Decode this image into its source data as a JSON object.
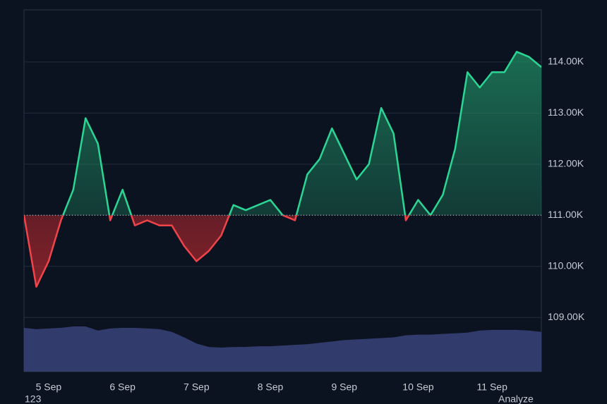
{
  "chart_data": {
    "type": "baseline",
    "baseline": 111,
    "categories": [
      null,
      null,
      "5 Sep",
      null,
      null,
      null,
      null,
      null,
      "6 Sep",
      null,
      null,
      null,
      null,
      null,
      "7 Sep",
      null,
      null,
      null,
      null,
      null,
      "8 Sep",
      null,
      null,
      null,
      null,
      null,
      "9 Sep",
      null,
      null,
      null,
      null,
      null,
      "10 Sep",
      null,
      null,
      null,
      null,
      null,
      "11 Sep",
      null,
      null,
      null,
      null
    ],
    "series": [
      {
        "up_color": "#2bd695",
        "down_color": "#f0444a",
        "values": [
          111.0,
          109.6,
          110.1,
          110.9,
          111.5,
          112.9,
          112.4,
          110.9,
          111.5,
          110.8,
          110.9,
          110.8,
          110.8,
          110.4,
          110.1,
          110.3,
          110.6,
          111.2,
          111.1,
          111.2,
          111.3,
          111.0,
          110.9,
          111.8,
          112.1,
          112.7,
          112.2,
          111.7,
          112.0,
          113.1,
          112.6,
          110.9,
          111.3,
          111.0,
          111.4,
          112.3,
          113.8,
          113.5,
          113.8,
          113.8,
          114.2,
          114.1,
          113.9
        ]
      }
    ],
    "volume": {
      "color": "#39447a",
      "values": [
        64,
        62,
        63,
        64,
        66,
        66,
        60,
        63,
        64,
        64,
        63,
        62,
        58,
        50,
        41,
        36,
        35,
        36,
        36,
        37,
        37,
        38,
        39,
        40,
        42,
        44,
        46,
        47,
        48,
        49,
        50,
        53,
        54,
        54,
        55,
        56,
        57,
        60,
        61,
        61,
        61,
        60,
        58
      ]
    },
    "ylim": [
      107.94,
      115.02
    ],
    "yticks": [
      {
        "value": 109,
        "label": "109.00K"
      },
      {
        "value": 110,
        "label": "110.00K"
      },
      {
        "value": 111,
        "label": "111.00K"
      },
      {
        "value": 112,
        "label": "112.00K"
      },
      {
        "value": 113,
        "label": "113.00K"
      },
      {
        "value": 114,
        "label": "114.00K"
      }
    ],
    "grid": true,
    "footer_left": "123",
    "footer_right": "Analyze"
  }
}
